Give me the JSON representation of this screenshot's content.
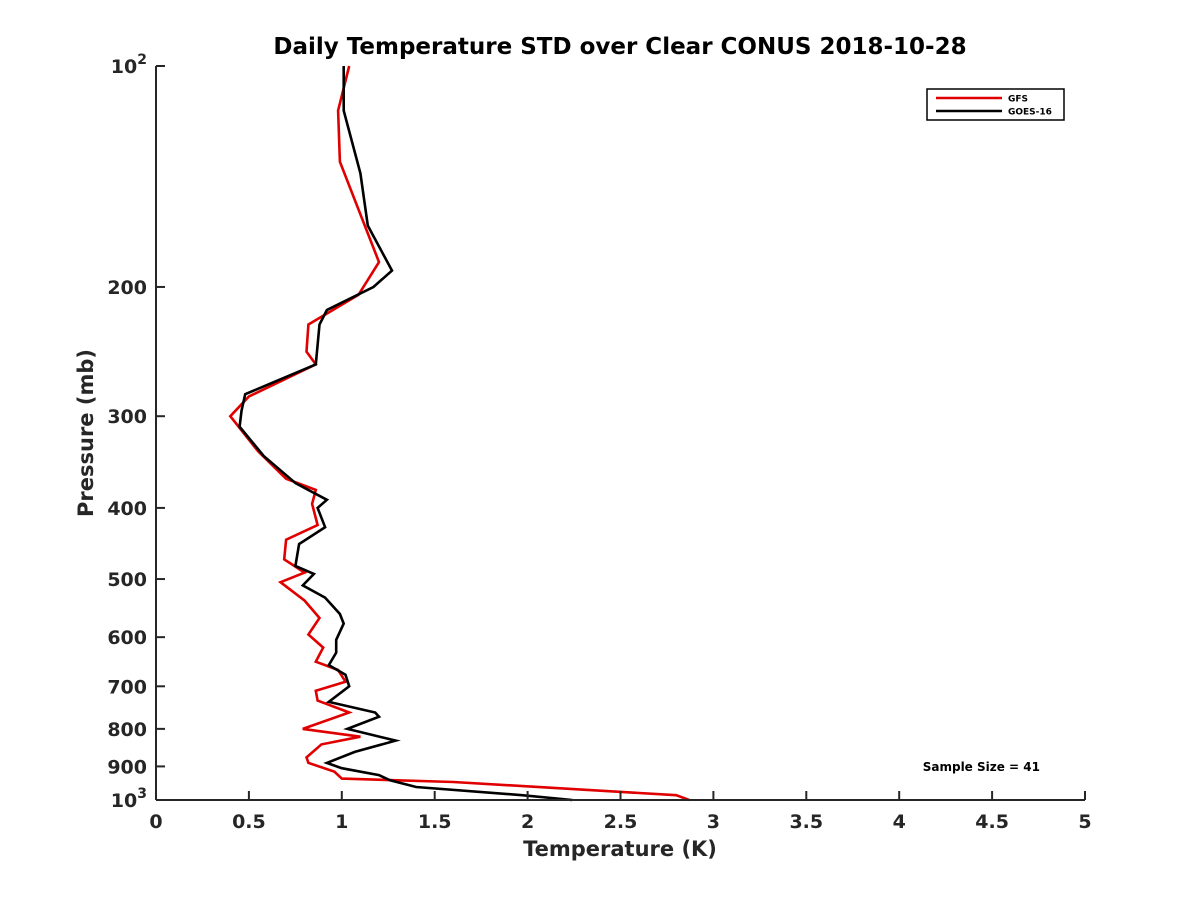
{
  "chart_data": {
    "type": "line",
    "title": "Daily Temperature STD over Clear CONUS 2018-10-28",
    "xlabel": "Temperature (K)",
    "ylabel": "Pressure (mb)",
    "xlim": [
      0,
      5
    ],
    "ylim": [
      100,
      1000
    ],
    "yscale": "log",
    "y_reversed": true,
    "xticks": [
      0,
      0.5,
      1,
      1.5,
      2,
      2.5,
      3,
      3.5,
      4,
      4.5,
      5
    ],
    "xtick_labels": [
      "0",
      "0.5",
      "1",
      "1.5",
      "2",
      "2.5",
      "3",
      "3.5",
      "4",
      "4.5",
      "5"
    ],
    "yticks": [
      100,
      200,
      300,
      400,
      500,
      600,
      700,
      800,
      900,
      1000
    ],
    "ytick_labels": [
      "10^2",
      "200",
      "300",
      "400",
      "500",
      "600",
      "700",
      "800",
      "900",
      "10^3"
    ],
    "grid": false,
    "legend_position": "top-right",
    "annotation": "Sample Size = 41",
    "series": [
      {
        "name": "GFS",
        "color": "#e00000",
        "points": [
          [
            1.04,
            100
          ],
          [
            0.98,
            115
          ],
          [
            0.99,
            135
          ],
          [
            1.2,
            185
          ],
          [
            1.09,
            205
          ],
          [
            0.82,
            225
          ],
          [
            0.81,
            245
          ],
          [
            0.86,
            255
          ],
          [
            0.5,
            282
          ],
          [
            0.4,
            300
          ],
          [
            0.55,
            335
          ],
          [
            0.7,
            365
          ],
          [
            0.86,
            378
          ],
          [
            0.84,
            395
          ],
          [
            0.87,
            422
          ],
          [
            0.7,
            442
          ],
          [
            0.69,
            470
          ],
          [
            0.8,
            490
          ],
          [
            0.67,
            505
          ],
          [
            0.8,
            535
          ],
          [
            0.88,
            565
          ],
          [
            0.82,
            595
          ],
          [
            0.9,
            620
          ],
          [
            0.86,
            648
          ],
          [
            0.98,
            665
          ],
          [
            1.02,
            690
          ],
          [
            0.86,
            710
          ],
          [
            0.87,
            732
          ],
          [
            1.04,
            760
          ],
          [
            0.79,
            800
          ],
          [
            1.1,
            820
          ],
          [
            0.89,
            840
          ],
          [
            0.81,
            875
          ],
          [
            0.82,
            890
          ],
          [
            0.96,
            915
          ],
          [
            1.0,
            935
          ],
          [
            1.6,
            945
          ],
          [
            2.8,
            985
          ],
          [
            2.87,
            1000
          ]
        ]
      },
      {
        "name": "GOES-16",
        "color": "#000000",
        "points": [
          [
            1.01,
            100
          ],
          [
            1.01,
            115
          ],
          [
            1.1,
            140
          ],
          [
            1.14,
            165
          ],
          [
            1.27,
            190
          ],
          [
            1.17,
            200
          ],
          [
            0.92,
            215
          ],
          [
            0.88,
            225
          ],
          [
            0.86,
            255
          ],
          [
            0.48,
            280
          ],
          [
            0.46,
            295
          ],
          [
            0.45,
            310
          ],
          [
            0.58,
            340
          ],
          [
            0.75,
            370
          ],
          [
            0.92,
            390
          ],
          [
            0.87,
            400
          ],
          [
            0.91,
            425
          ],
          [
            0.77,
            448
          ],
          [
            0.75,
            480
          ],
          [
            0.85,
            492
          ],
          [
            0.79,
            510
          ],
          [
            0.91,
            530
          ],
          [
            0.99,
            558
          ],
          [
            1.01,
            575
          ],
          [
            0.97,
            605
          ],
          [
            0.97,
            630
          ],
          [
            0.93,
            655
          ],
          [
            1.02,
            675
          ],
          [
            1.04,
            700
          ],
          [
            0.93,
            735
          ],
          [
            1.18,
            760
          ],
          [
            1.2,
            770
          ],
          [
            1.03,
            800
          ],
          [
            1.29,
            830
          ],
          [
            1.07,
            860
          ],
          [
            0.92,
            890
          ],
          [
            1.0,
            905
          ],
          [
            1.2,
            925
          ],
          [
            1.26,
            940
          ],
          [
            1.4,
            960
          ],
          [
            1.97,
            985
          ],
          [
            2.24,
            1000
          ]
        ]
      }
    ]
  }
}
